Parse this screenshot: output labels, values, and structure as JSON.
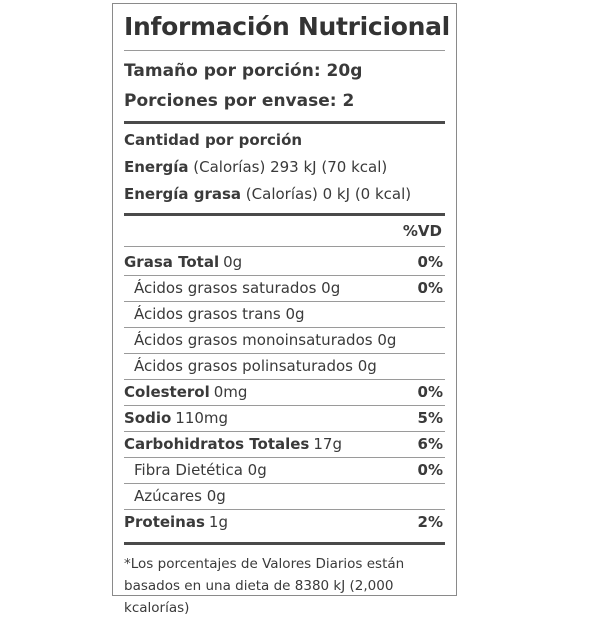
{
  "title": "Información Nutricional",
  "serving": {
    "size": "Tamaño por porción: 20g",
    "per_container": "Porciones por envase: 2"
  },
  "amount_per_serving": "Cantidad por porción",
  "energy": {
    "label": "Energía",
    "detail": " (Calorías)  293 kJ (70 kcal)"
  },
  "energy_fat": {
    "label": "Energía grasa",
    "detail": "  (Calorías) 0 kJ (0 kcal)"
  },
  "dv_header": "%VD",
  "nutrients": [
    {
      "name": "Grasa Total",
      "amount": "0g",
      "pct": "0%"
    },
    {
      "name": "Ácidos grasos saturados 0g",
      "pct": "0%"
    },
    {
      "name": "Ácidos grasos trans 0g"
    },
    {
      "name": "Ácidos grasos monoinsaturados 0g"
    },
    {
      "name": "Ácidos grasos polinsaturados 0g"
    },
    {
      "name": "Colesterol",
      "amount": "0mg",
      "pct": "0%"
    },
    {
      "name": "Sodio",
      "amount": "110mg",
      "pct": "5%"
    },
    {
      "name": "Carbohidratos Totales",
      "amount": "17g",
      "pct": "6%"
    },
    {
      "name": "Fibra Dietética 0g",
      "pct": "0%"
    },
    {
      "name": "Azúcares 0g"
    },
    {
      "name": "Proteinas",
      "amount": "1g",
      "pct": "2%"
    }
  ],
  "footnote_line1": "*Los porcentajes de Valores Diarios están",
  "footnote_line2": "basados en una dieta de 8380 kJ (2,000 kcalorías)"
}
